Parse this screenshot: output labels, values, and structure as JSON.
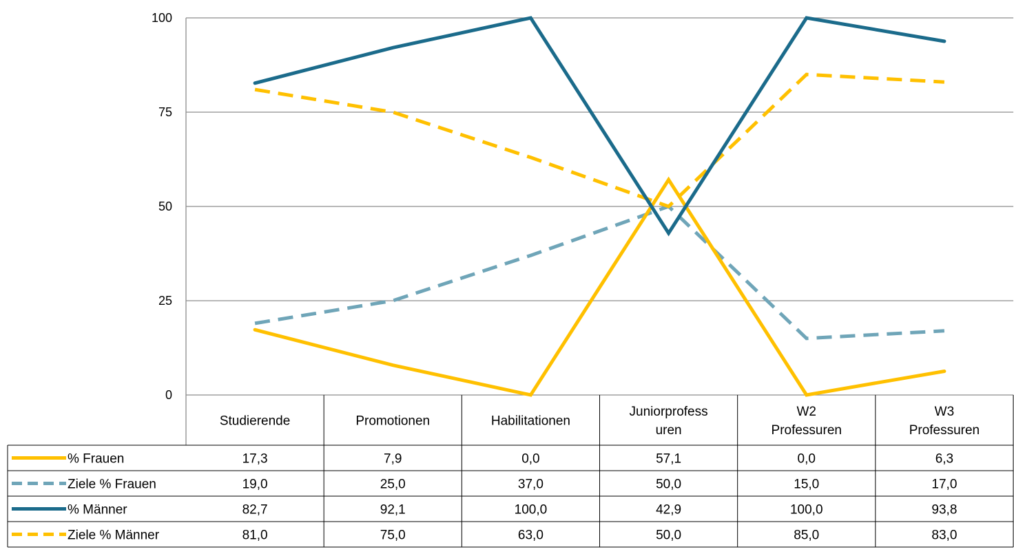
{
  "chart_data": {
    "type": "line",
    "categories": [
      [
        "Studierende"
      ],
      [
        "Promotionen"
      ],
      [
        "Habilitationen"
      ],
      [
        "Juniorprofess",
        "uren"
      ],
      [
        "W2",
        "Professuren"
      ],
      [
        "W3",
        "Professuren"
      ]
    ],
    "ylim": [
      0,
      100
    ],
    "yticks": [
      0,
      25,
      50,
      75,
      100
    ],
    "grid": true,
    "legend_placement": "data-table-left",
    "series": [
      {
        "name": "% Frauen",
        "values": [
          17.3,
          7.9,
          0.0,
          57.1,
          0.0,
          6.3
        ],
        "display": [
          "17,3",
          "7,9",
          "0,0",
          "57,1",
          "0,0",
          "6,3"
        ],
        "color": "#FFC000",
        "style": "solid"
      },
      {
        "name": "Ziele % Frauen",
        "values": [
          19.0,
          25.0,
          37.0,
          50.0,
          15.0,
          17.0
        ],
        "display": [
          "19,0",
          "25,0",
          "37,0",
          "50,0",
          "15,0",
          "17,0"
        ],
        "color": "#6FA5B8",
        "style": "dashed"
      },
      {
        "name": "% Männer",
        "values": [
          82.7,
          92.1,
          100.0,
          42.9,
          100.0,
          93.8
        ],
        "display": [
          "82,7",
          "92,1",
          "100,0",
          "42,9",
          "100,0",
          "93,8"
        ],
        "color": "#1B6B8B",
        "style": "solid"
      },
      {
        "name": "Ziele % Männer",
        "values": [
          81.0,
          75.0,
          63.0,
          50.0,
          85.0,
          83.0
        ],
        "display": [
          "81,0",
          "75,0",
          "63,0",
          "50,0",
          "85,0",
          "83,0"
        ],
        "color": "#FFC000",
        "style": "dashed"
      }
    ]
  }
}
